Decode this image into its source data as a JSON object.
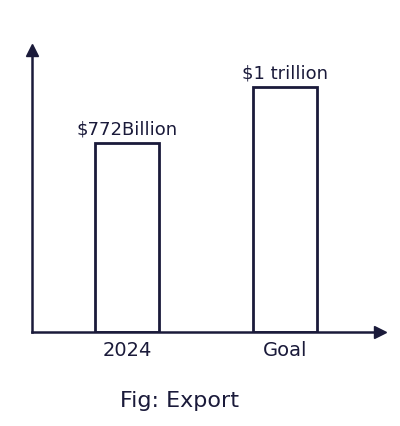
{
  "chart_data": {
    "type": "bar",
    "title": "Fig: Export",
    "categories": [
      "2024",
      "Goal"
    ],
    "values": [
      772,
      1000
    ],
    "value_labels": [
      "$772Billion",
      "$1 trillion"
    ],
    "data_labels": true,
    "color": "#ffffff",
    "ylim": [
      0,
      1150
    ],
    "yticks": [],
    "tick_labels": "x",
    "grid": false
  }
}
